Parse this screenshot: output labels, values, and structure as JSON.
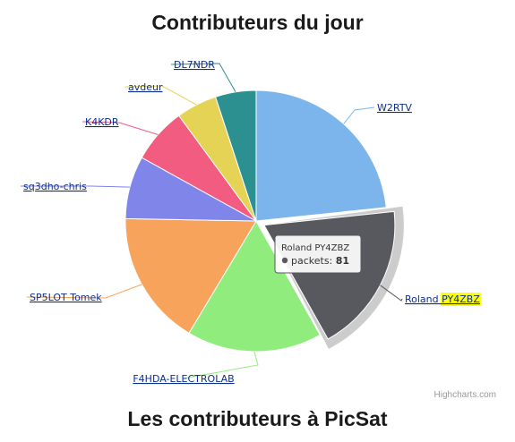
{
  "page": {
    "section_heading": "Les contributeurs à PicSat"
  },
  "chart_data": {
    "type": "pie",
    "title": "Contributeurs du jour",
    "series_name": "packets",
    "slices": [
      {
        "name": "W2RTV",
        "value": 102,
        "color": "#7cb5ec"
      },
      {
        "name": "Roland PY4ZBZ",
        "value": 81,
        "color": "#58585f",
        "highlight": "PY4ZBZ",
        "selected": true
      },
      {
        "name": "F4HDA-ELECTROLAB",
        "value": 73,
        "color": "#90ed7d"
      },
      {
        "name": "SP5LOT Tomek",
        "value": 73,
        "color": "#f7a35c"
      },
      {
        "name": "sq3dho-chris",
        "value": 34,
        "color": "#8085e9"
      },
      {
        "name": "K4KDR",
        "value": 30,
        "color": "#f15c80"
      },
      {
        "name": "avdeur",
        "value": 22,
        "color": "#e4d354"
      },
      {
        "name": "DL7NDR",
        "value": 22,
        "color": "#2b908f"
      }
    ],
    "tooltip": {
      "name": "Roland PY4ZBZ",
      "series": "packets",
      "value": "81"
    },
    "credits": "Highcharts.com",
    "legend": "none"
  }
}
